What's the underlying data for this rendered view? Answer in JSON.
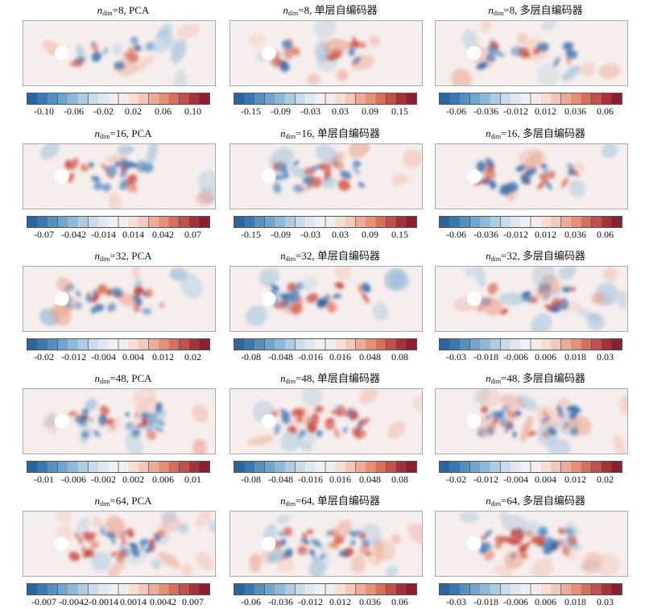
{
  "figure": {
    "rows": [
      {
        "dim_label": "n",
        "dim_sub": "dim",
        "dim_value": "8",
        "panels": [
          {
            "method": "PCA",
            "ticks": [
              "-0.10",
              "-0.06",
              "-0.02",
              "0.02",
              "0.06",
              "0.10"
            ]
          },
          {
            "method": "单层自编码器",
            "ticks": [
              "-0.15",
              "-0.09",
              "-0.03",
              "0.03",
              "0.09",
              "0.15"
            ]
          },
          {
            "method": "多层自编码器",
            "ticks": [
              "-0.06",
              "-0.036",
              "-0.012",
              "0.012",
              "0.036",
              "0.06"
            ]
          }
        ]
      },
      {
        "dim_label": "n",
        "dim_sub": "dim",
        "dim_value": "16",
        "panels": [
          {
            "method": "PCA",
            "ticks": [
              "-0.07",
              "-0.042",
              "-0.014",
              "0.014",
              "0.042",
              "0.07"
            ]
          },
          {
            "method": "单层自编码器",
            "ticks": [
              "-0.15",
              "-0.09",
              "-0.03",
              "0.03",
              "0.09",
              "0.15"
            ]
          },
          {
            "method": "多层自编码器",
            "ticks": [
              "-0.06",
              "-0.036",
              "-0.012",
              "0.012",
              "0.036",
              "0.06"
            ]
          }
        ]
      },
      {
        "dim_label": "n",
        "dim_sub": "dim",
        "dim_value": "32",
        "panels": [
          {
            "method": "PCA",
            "ticks": [
              "-0.02",
              "-0.012",
              "-0.004",
              "0.004",
              "0.012",
              "0.02"
            ]
          },
          {
            "method": "单层自编码器",
            "ticks": [
              "-0.08",
              "-0.048",
              "-0.016",
              "0.016",
              "0.048",
              "0.08"
            ]
          },
          {
            "method": "多层自编码器",
            "ticks": [
              "-0.03",
              "-0.018",
              "-0.006",
              "0.006",
              "0.018",
              "0.03"
            ]
          }
        ]
      },
      {
        "dim_label": "n",
        "dim_sub": "dim",
        "dim_value": "48",
        "panels": [
          {
            "method": "PCA",
            "ticks": [
              "-0.01",
              "-0.006",
              "-0.002",
              "0.002",
              "0.006",
              "0.01"
            ]
          },
          {
            "method": "单层自编码器",
            "ticks": [
              "-0.08",
              "-0.048",
              "-0.016",
              "0.016",
              "0.048",
              "0.08"
            ]
          },
          {
            "method": "多层自编码器",
            "ticks": [
              "-0.02",
              "-0.012",
              "-0.004",
              "0.004",
              "0.012",
              "0.02"
            ]
          }
        ]
      },
      {
        "dim_label": "n",
        "dim_sub": "dim",
        "dim_value": "64",
        "panels": [
          {
            "method": "PCA",
            "ticks": [
              "-0.007",
              "-0.0042",
              "-0.0014",
              "0.0014",
              "0.0042",
              "0.007"
            ]
          },
          {
            "method": "单层自编码器",
            "ticks": [
              "-0.06",
              "-0.036",
              "-0.012",
              "0.012",
              "0.036",
              "0.06"
            ]
          },
          {
            "method": "多层自编码器",
            "ticks": [
              "-0.03",
              "-0.018",
              "-0.006",
              "0.006",
              "0.018",
              "0.03"
            ]
          }
        ]
      }
    ],
    "colormap": [
      "#2c64a0",
      "#3c78b0",
      "#5590c0",
      "#71a5cd",
      "#8fb9d9",
      "#aecde4",
      "#c8dcec",
      "#dfe8f0",
      "#eef0f2",
      "#f4ece9",
      "#f6ded6",
      "#f3c8b8",
      "#eeac96",
      "#e59077",
      "#d6705b",
      "#c3504a",
      "#a5313b",
      "#8a1f31"
    ]
  }
}
